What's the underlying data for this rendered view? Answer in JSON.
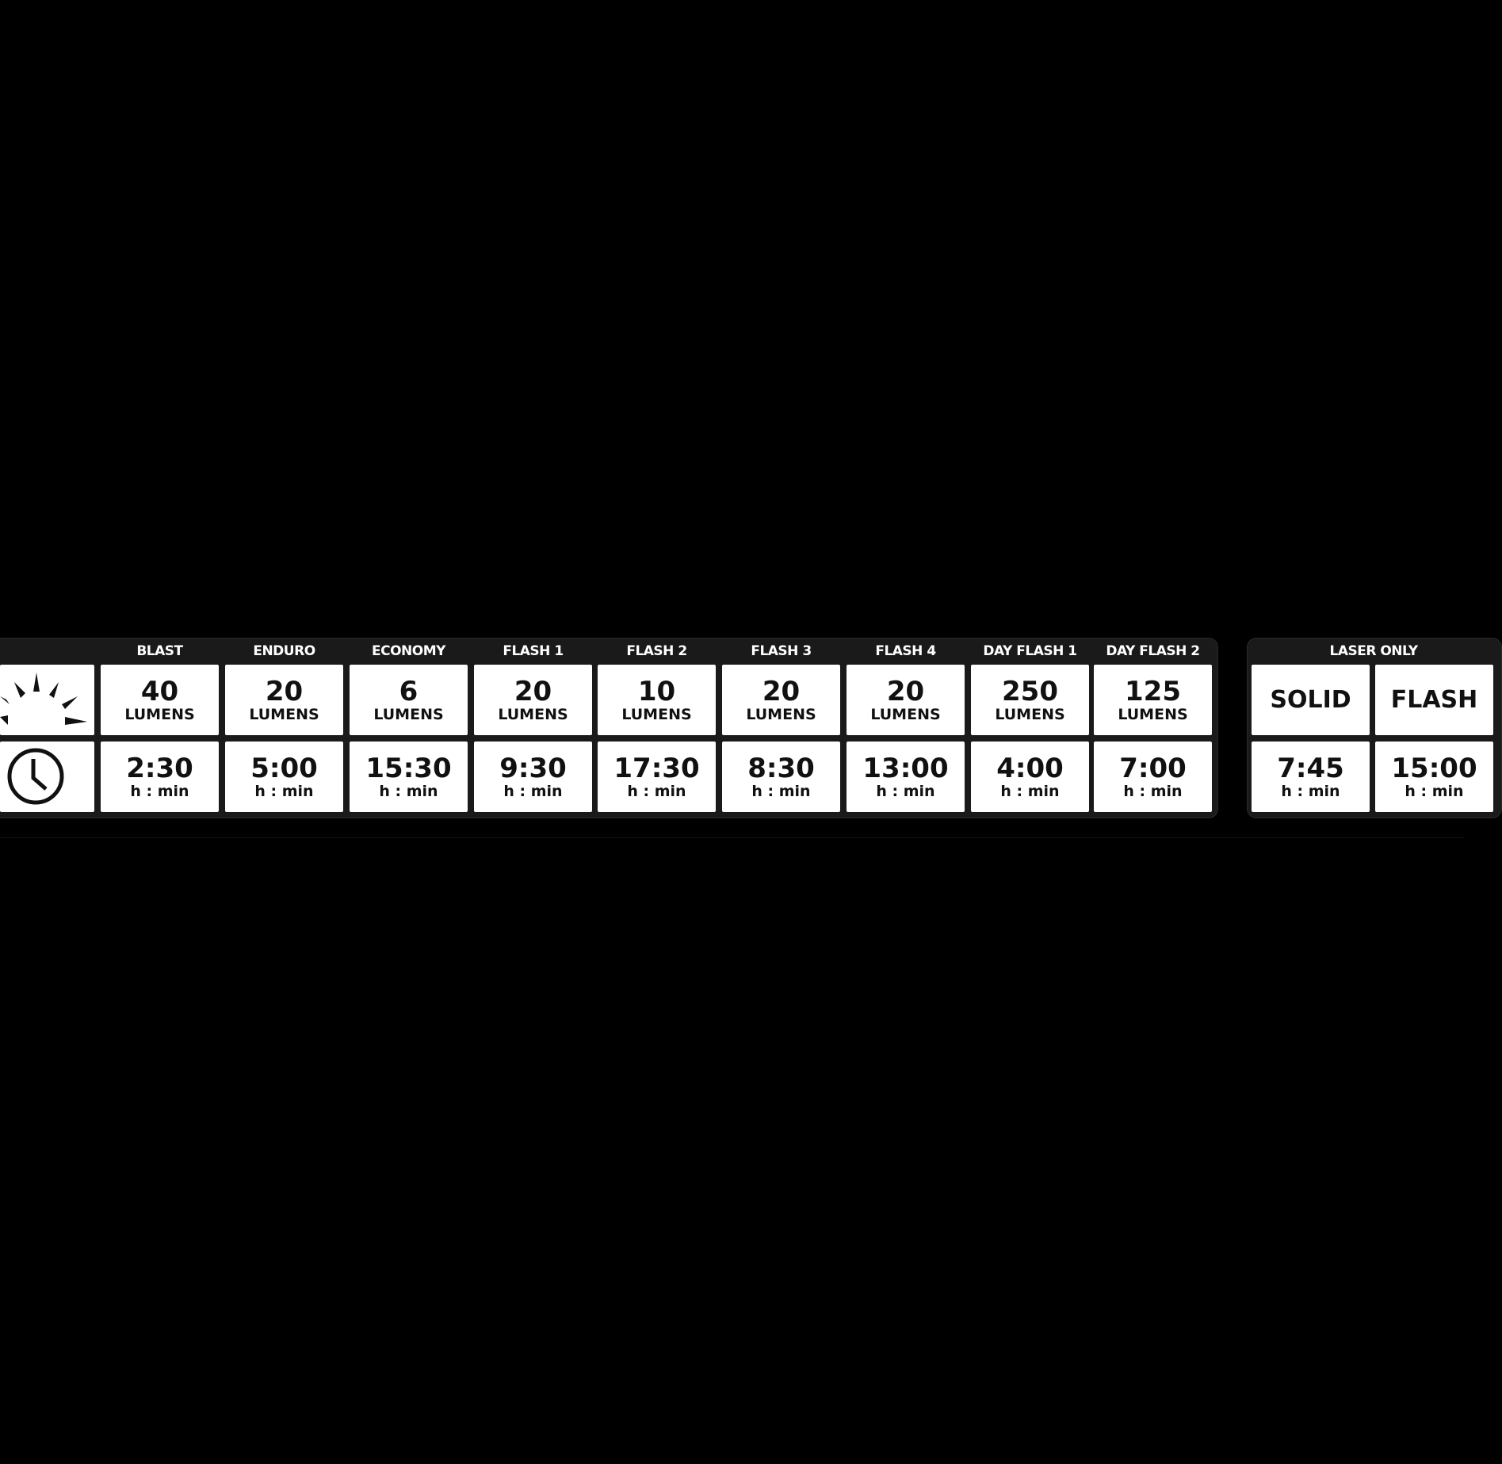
{
  "modes": [
    {
      "name": "BLAST",
      "lumens": "40",
      "runtime": "2:30"
    },
    {
      "name": "ENDURO",
      "lumens": "20",
      "runtime": "5:00"
    },
    {
      "name": "ECONOMY",
      "lumens": "6",
      "runtime": "15:30"
    },
    {
      "name": "FLASH 1",
      "lumens": "20",
      "runtime": "9:30"
    },
    {
      "name": "FLASH 2",
      "lumens": "10",
      "runtime": "17:30"
    },
    {
      "name": "FLASH 3",
      "lumens": "20",
      "runtime": "8:30"
    },
    {
      "name": "FLASH 4",
      "lumens": "20",
      "runtime": "13:00"
    },
    {
      "name": "DAY FLASH 1",
      "lumens": "250",
      "runtime": "4:00"
    },
    {
      "name": "DAY FLASH 2",
      "lumens": "125",
      "runtime": "7:00"
    }
  ],
  "lumens_unit": "LUMENS",
  "time_unit": "h : min",
  "laser": {
    "title": "LASER ONLY",
    "modes": [
      {
        "name": "SOLID",
        "runtime": "7:45"
      },
      {
        "name": "FLASH",
        "runtime": "15:00"
      }
    ]
  },
  "icons": {
    "brightness": "sun-icon",
    "runtime": "clock-icon"
  }
}
